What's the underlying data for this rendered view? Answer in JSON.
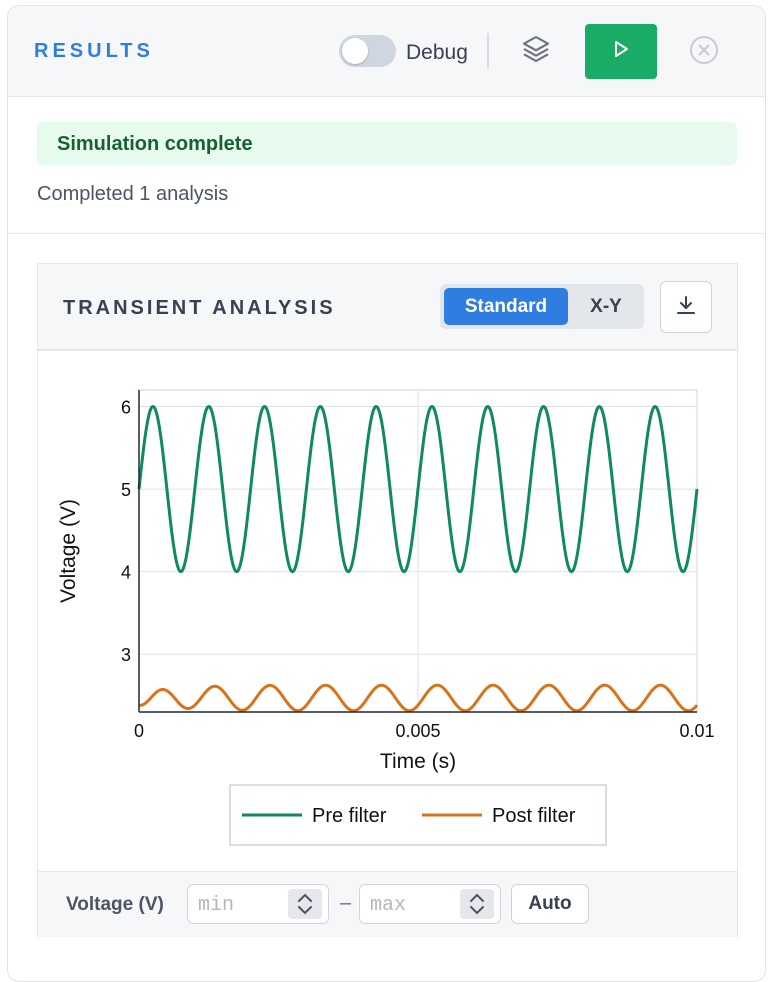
{
  "header": {
    "title": "RESULTS",
    "debug_label": "Debug",
    "debug_enabled": false
  },
  "status": {
    "message": "Simulation complete",
    "detail": "Completed 1 analysis"
  },
  "analysis": {
    "title": "TRANSIENT ANALYSIS",
    "modes": [
      "Standard",
      "X-Y"
    ],
    "active_mode": "Standard"
  },
  "axis_controls": {
    "label": "Voltage (V)",
    "min_placeholder": "min",
    "max_placeholder": "max",
    "separator": "–",
    "auto_label": "Auto"
  },
  "colors": {
    "accent": "#2f7de1",
    "run": "#1aab67",
    "status_bg": "#e7faee",
    "status_text": "#1b5e35"
  },
  "chart_data": {
    "type": "line",
    "xlabel": "Time (s)",
    "ylabel": "Voltage (V)",
    "xlim": [
      0,
      0.01
    ],
    "ylim": [
      2.3,
      6.2
    ],
    "x_ticks": [
      0,
      0.005,
      0.01
    ],
    "x_tick_labels": [
      "0",
      "0.005",
      "0.01"
    ],
    "y_ticks": [
      3,
      4,
      5,
      6
    ],
    "y_tick_labels": [
      "3",
      "4",
      "5",
      "6"
    ],
    "grid": true,
    "legend_position": "bottom",
    "series": [
      {
        "name": "Pre filter",
        "color": "#0f8a5f",
        "function": "5 + sin(2*pi*1000*t)",
        "samples": 10,
        "x": [
          0,
          0.00025,
          0.0005,
          0.00075,
          0.001,
          0.0015,
          0.002,
          0.005,
          0.0075,
          0.01
        ],
        "y": [
          5,
          6,
          5,
          4,
          5,
          5,
          5,
          5,
          4,
          5
        ]
      },
      {
        "name": "Post filter",
        "color": "#d97218",
        "x": [
          0,
          0.0003,
          0.0006,
          0.001,
          0.0016,
          0.002,
          0.0026,
          0.005,
          0.0076,
          0.01
        ],
        "y": [
          2.5,
          2.3,
          2.6,
          2.5,
          2.35,
          2.5,
          2.65,
          2.65,
          2.3,
          2.65
        ]
      }
    ]
  }
}
